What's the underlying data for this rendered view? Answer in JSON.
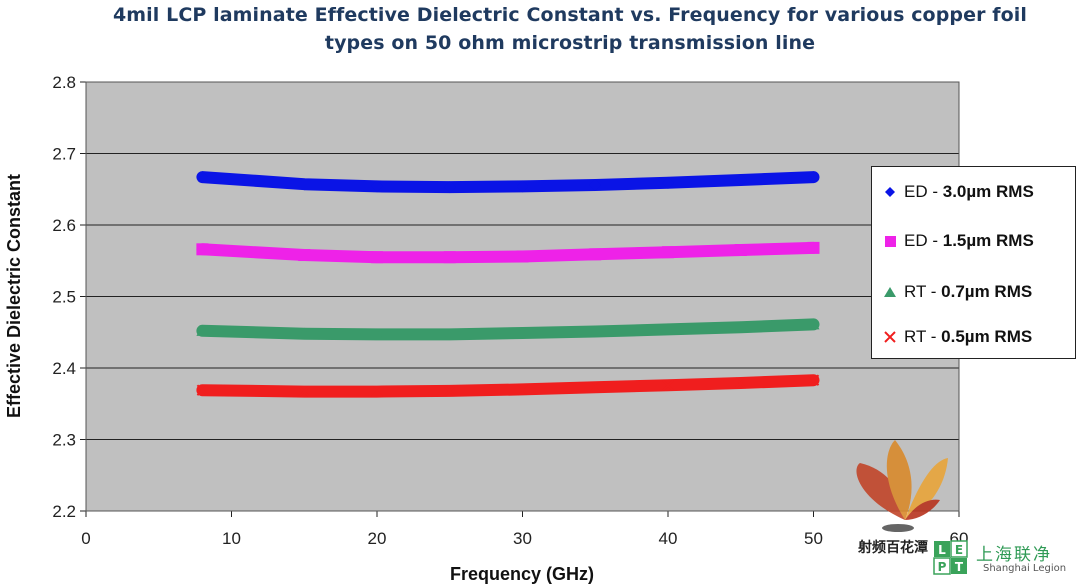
{
  "chart_data": {
    "type": "line",
    "title": "4mil LCP laminate Effective Dielectric Constant vs. Frequency for various copper foil types on 50 ohm microstrip transmission line",
    "title_lines": [
      "4mil LCP laminate Effective Dielectric Constant vs. Frequency for various copper foil",
      "types on 50 ohm microstrip transmission line"
    ],
    "xlabel": "Frequency (GHz)",
    "ylabel": "Effective Dielectric Constant",
    "xlim": [
      0,
      60
    ],
    "ylim": [
      2.2,
      2.8
    ],
    "x_ticks": [
      0,
      10,
      20,
      30,
      40,
      50,
      60
    ],
    "y_ticks": [
      "2.2",
      "2.3",
      "2.4",
      "2.5",
      "2.6",
      "2.7",
      "2.8"
    ],
    "grid": "horizontal",
    "legend_position": "right",
    "series": [
      {
        "name": "ED - 3.0µm RMS",
        "label_prefix": "ED - ",
        "label_bold": "3.0µm RMS",
        "color": "#0a14e6",
        "marker": "diamond",
        "x": [
          8,
          15,
          20,
          25,
          30,
          35,
          40,
          45,
          50
        ],
        "y": [
          2.667,
          2.657,
          2.654,
          2.653,
          2.654,
          2.656,
          2.659,
          2.663,
          2.667
        ]
      },
      {
        "name": "ED - 1.5µm RMS",
        "label_prefix": "ED - ",
        "label_bold": "1.5µm  RMS",
        "color": "#ee22e8",
        "marker": "square",
        "x": [
          8,
          15,
          20,
          25,
          30,
          35,
          40,
          45,
          50
        ],
        "y": [
          2.566,
          2.558,
          2.555,
          2.555,
          2.556,
          2.559,
          2.562,
          2.565,
          2.568
        ]
      },
      {
        "name": "RT - 0.7µm RMS",
        "label_prefix": "RT - ",
        "label_bold": "0.7µm RMS",
        "color": "#3a9a6a",
        "marker": "triangle",
        "x": [
          8,
          15,
          20,
          25,
          30,
          35,
          40,
          45,
          50
        ],
        "y": [
          2.452,
          2.448,
          2.447,
          2.447,
          2.449,
          2.451,
          2.454,
          2.457,
          2.461
        ]
      },
      {
        "name": "RT - 0.5µm RMS",
        "label_prefix": "RT - ",
        "label_bold": "0.5µm RMS",
        "color": "#f01e1e",
        "marker": "x",
        "x": [
          8,
          15,
          20,
          25,
          30,
          35,
          40,
          45,
          50
        ],
        "y": [
          2.369,
          2.367,
          2.367,
          2.368,
          2.37,
          2.373,
          2.376,
          2.379,
          2.383
        ]
      }
    ]
  },
  "watermark": {
    "cn_left": "射频百花潭",
    "cn_right": "上海联净",
    "en_right": "Shanghai Legion",
    "logo_letters": [
      "L",
      "E",
      "P",
      "T"
    ]
  }
}
